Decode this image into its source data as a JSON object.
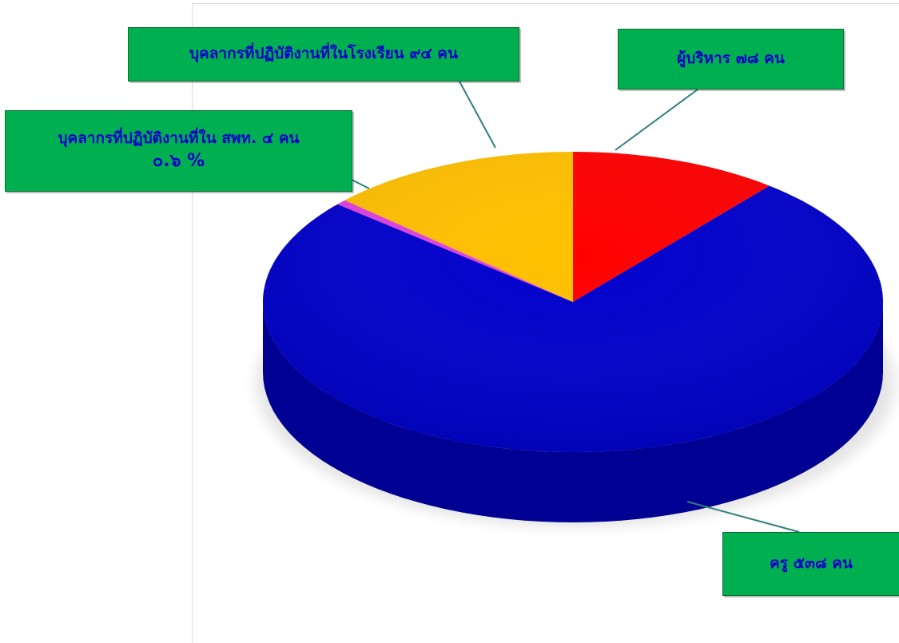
{
  "chart_data": {
    "type": "pie",
    "style": "3d",
    "slices": [
      {
        "label": "ผู้บริหาร",
        "value": 78,
        "unit": "คน",
        "color": "#ff0000"
      },
      {
        "label": "ครู",
        "value": 538,
        "unit": "คน",
        "color": "#0000cc"
      },
      {
        "label": "บุคลากรที่ปฏิบัติงานที่ใน สพท.",
        "value": 4,
        "unit": "คน",
        "color": "#e040e0"
      },
      {
        "label": "บุคลากรที่ปฏิบัติงานที่ในโรงเรียน",
        "value": 94,
        "unit": "คน",
        "color": "#ffc000"
      }
    ],
    "legend": "none",
    "labels": {
      "admin": "ผู้บริหาร ๗๘ คน",
      "teacher": "ครู ๕๓๘ คน",
      "office_line1": "บุคลากรที่ปฏิบัติงานที่ใน สพท. ๔ คน",
      "office_pct": "๐.๖ %",
      "school": "บุคลากรที่ปฏิบัติงานที่ในโรงเรียน ๙๔ คน"
    },
    "callout_color": "#00b050",
    "callout_text_color": "#0000cc"
  }
}
